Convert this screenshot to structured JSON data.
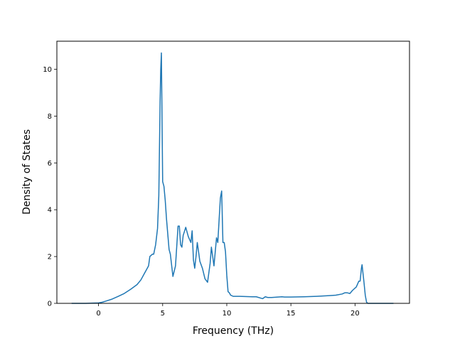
{
  "chart_data": {
    "type": "line",
    "title": "",
    "xlabel": "Frequency (THz)",
    "ylabel": "Density of States",
    "xlim": [
      -3.25,
      24.25
    ],
    "ylim": [
      0,
      11.2
    ],
    "grid": false,
    "legend": "none",
    "x_ticks": [
      0,
      5,
      10,
      15,
      20
    ],
    "x_tick_labels": [
      "0",
      "5",
      "10",
      "15",
      "20"
    ],
    "y_ticks": [
      0,
      2,
      4,
      6,
      8,
      10
    ],
    "y_tick_labels": [
      "0",
      "2",
      "4",
      "6",
      "8",
      "10"
    ],
    "series": [
      {
        "color": "#1f77b4",
        "x": [
          -2.1,
          -1.0,
          0.0,
          0.3,
          0.6,
          1.0,
          1.5,
          2.0,
          2.5,
          3.0,
          3.3,
          3.6,
          3.9,
          4.0,
          4.2,
          4.3,
          4.45,
          4.6,
          4.7,
          4.8,
          4.85,
          4.9,
          5.0,
          5.1,
          5.2,
          5.3,
          5.5,
          5.6,
          5.8,
          6.0,
          6.2,
          6.3,
          6.4,
          6.5,
          6.6,
          6.8,
          7.0,
          7.2,
          7.3,
          7.4,
          7.5,
          7.6,
          7.7,
          7.9,
          8.1,
          8.3,
          8.5,
          8.7,
          8.8,
          9.0,
          9.2,
          9.3,
          9.5,
          9.6,
          9.7,
          9.8,
          9.9,
          10.0,
          10.1,
          10.2,
          10.3,
          10.5,
          10.7,
          11.0,
          12.0,
          12.3,
          12.8,
          13.0,
          13.2,
          13.5,
          14.0,
          14.3,
          14.5,
          15.0,
          16.0,
          17.0,
          18.0,
          18.5,
          19.0,
          19.2,
          19.4,
          19.6,
          19.8,
          20.0,
          20.1,
          20.3,
          20.4,
          20.5,
          20.55,
          20.6,
          20.7,
          20.8,
          20.9,
          21.0,
          23.0
        ],
        "y": [
          0.0,
          0.0,
          0.02,
          0.05,
          0.1,
          0.17,
          0.29,
          0.42,
          0.6,
          0.8,
          1.0,
          1.3,
          1.6,
          2.0,
          2.1,
          2.1,
          2.5,
          3.2,
          4.6,
          8.6,
          10.0,
          10.7,
          5.2,
          5.0,
          4.4,
          3.6,
          2.3,
          2.1,
          1.15,
          1.6,
          3.3,
          3.3,
          2.5,
          2.4,
          2.9,
          3.25,
          2.85,
          2.6,
          3.1,
          1.85,
          1.5,
          2.0,
          2.6,
          1.8,
          1.5,
          1.05,
          0.9,
          1.7,
          2.4,
          1.6,
          2.8,
          2.6,
          4.5,
          4.8,
          2.6,
          2.6,
          2.2,
          1.2,
          0.5,
          0.45,
          0.35,
          0.3,
          0.3,
          0.3,
          0.28,
          0.28,
          0.2,
          0.28,
          0.25,
          0.25,
          0.27,
          0.28,
          0.27,
          0.27,
          0.28,
          0.3,
          0.33,
          0.35,
          0.4,
          0.45,
          0.45,
          0.42,
          0.55,
          0.65,
          0.7,
          0.95,
          0.95,
          1.5,
          1.65,
          1.4,
          0.9,
          0.35,
          0.05,
          0.0,
          0.0
        ]
      }
    ]
  }
}
